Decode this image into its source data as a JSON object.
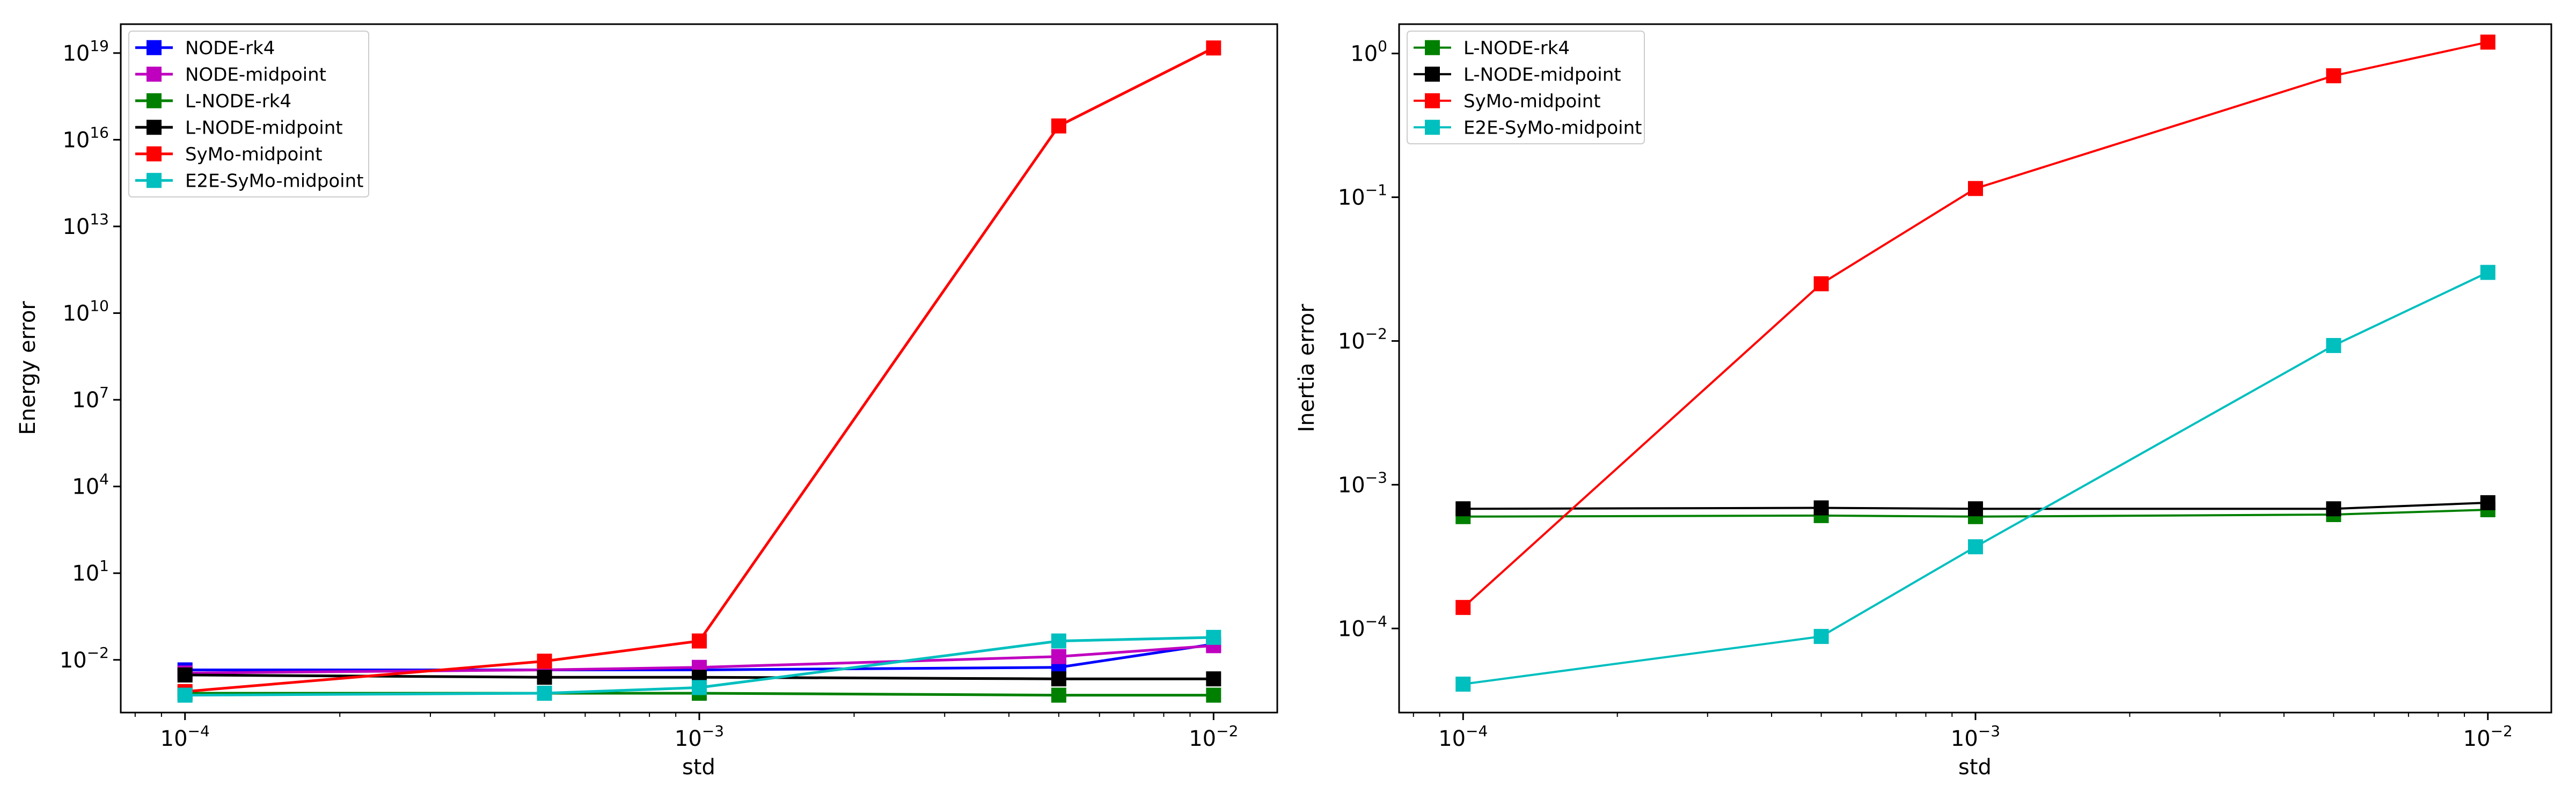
{
  "chart_data": [
    {
      "type": "line",
      "xlabel": "std",
      "ylabel": "Energy error",
      "xscale": "log",
      "yscale": "log",
      "x": [
        0.0001,
        0.0005,
        0.001,
        0.005,
        0.01
      ],
      "xticks": [
        {
          "value": 0.0001,
          "base": "10",
          "exp": "−4"
        },
        {
          "value": 0.001,
          "base": "10",
          "exp": "−3"
        },
        {
          "value": 0.01,
          "base": "10",
          "exp": "−2"
        }
      ],
      "yticks": [
        {
          "value": 0.01,
          "base": "10",
          "exp": "−2"
        },
        {
          "value": 10,
          "base": "10",
          "exp": "1"
        },
        {
          "value": 10000,
          "base": "10",
          "exp": "4"
        },
        {
          "value": 10000000,
          "base": "10",
          "exp": "7"
        },
        {
          "value": 10000000000,
          "base": "10",
          "exp": "10"
        },
        {
          "value": 10000000000000,
          "base": "10",
          "exp": "13"
        },
        {
          "value": 1e+16,
          "base": "10",
          "exp": "16"
        },
        {
          "value": 1e+19,
          "base": "10",
          "exp": "19"
        }
      ],
      "xlim": [
        7.5e-05,
        0.0133
      ],
      "ylim": [
        0.00015,
        1e+20
      ],
      "grid": false,
      "legend_position": "top-left",
      "series": [
        {
          "name": "NODE-rk4",
          "color": "#0000ff",
          "values": [
            0.0045,
            0.0045,
            0.0045,
            0.0055,
            0.035
          ]
        },
        {
          "name": "NODE-midpoint",
          "color": "#bf00bf",
          "values": [
            0.0035,
            0.0045,
            0.0055,
            0.013,
            0.031
          ]
        },
        {
          "name": "L-NODE-rk4",
          "color": "#008000",
          "values": [
            0.0007,
            0.0007,
            0.0007,
            0.0006,
            0.0006
          ]
        },
        {
          "name": "L-NODE-midpoint",
          "color": "#000000",
          "values": [
            0.003,
            0.0025,
            0.0025,
            0.0022,
            0.0022
          ]
        },
        {
          "name": "SyMo-midpoint",
          "color": "#ff0000",
          "values": [
            0.0008,
            0.009,
            0.045,
            3e+16,
            1.5e+19
          ]
        },
        {
          "name": "E2E-SyMo-midpoint",
          "color": "#00bfbf",
          "values": [
            0.0006,
            0.0007,
            0.0011,
            0.045,
            0.06
          ]
        }
      ]
    },
    {
      "type": "line",
      "xlabel": "std",
      "ylabel": "Inertia error",
      "xscale": "log",
      "yscale": "log",
      "x": [
        0.0001,
        0.0005,
        0.001,
        0.005,
        0.01
      ],
      "xticks": [
        {
          "value": 0.0001,
          "base": "10",
          "exp": "−4"
        },
        {
          "value": 0.001,
          "base": "10",
          "exp": "−3"
        },
        {
          "value": 0.01,
          "base": "10",
          "exp": "−2"
        }
      ],
      "yticks": [
        {
          "value": 0.0001,
          "base": "10",
          "exp": "−4"
        },
        {
          "value": 0.001,
          "base": "10",
          "exp": "−3"
        },
        {
          "value": 0.01,
          "base": "10",
          "exp": "−2"
        },
        {
          "value": 0.1,
          "base": "10",
          "exp": "−1"
        },
        {
          "value": 1,
          "base": "10",
          "exp": "0"
        }
      ],
      "xlim": [
        7.5e-05,
        0.0133
      ],
      "ylim": [
        2.6e-05,
        1.6
      ],
      "grid": false,
      "legend_position": "top-left",
      "series": [
        {
          "name": "L-NODE-rk4",
          "color": "#008000",
          "values": [
            0.0006,
            0.00061,
            0.0006,
            0.00062,
            0.00067
          ]
        },
        {
          "name": "L-NODE-midpoint",
          "color": "#000000",
          "values": [
            0.00068,
            0.00069,
            0.00068,
            0.00068,
            0.00075
          ]
        },
        {
          "name": "SyMo-midpoint",
          "color": "#ff0000",
          "values": [
            0.00014,
            0.025,
            0.115,
            0.7,
            1.2
          ]
        },
        {
          "name": "E2E-SyMo-midpoint",
          "color": "#00bfbf",
          "values": [
            4.1e-05,
            8.8e-05,
            0.00037,
            0.0093,
            0.03
          ]
        }
      ]
    }
  ]
}
